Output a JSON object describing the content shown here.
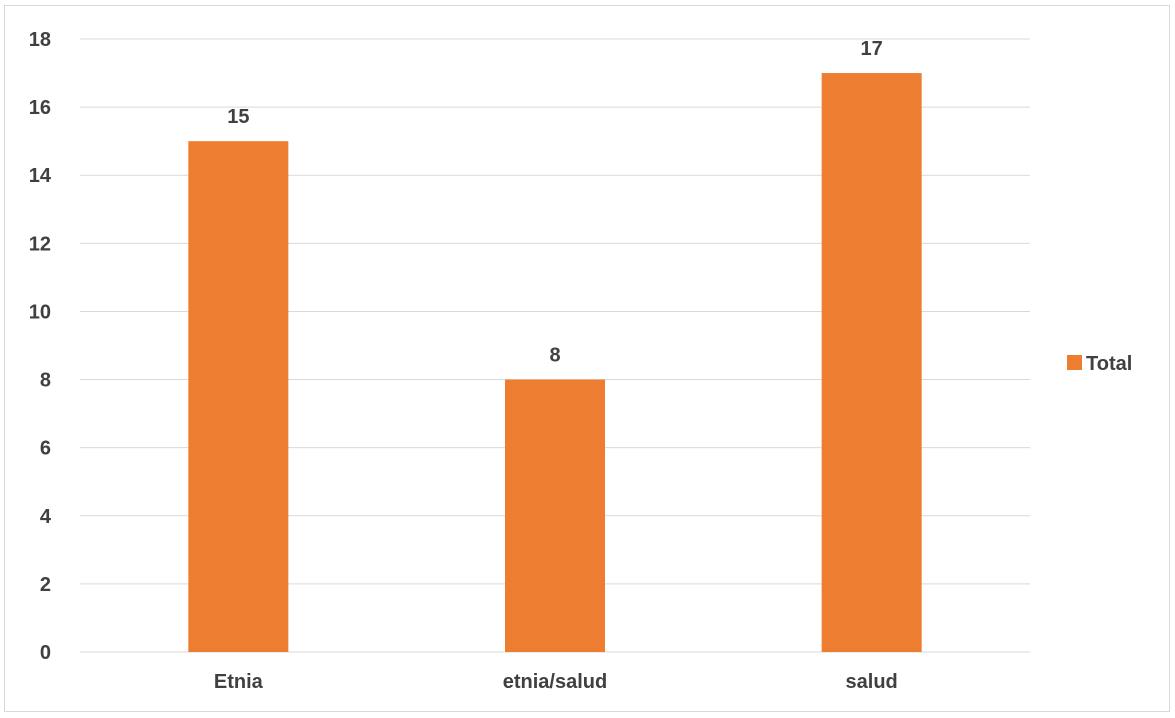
{
  "chart_data": {
    "type": "bar",
    "categories": [
      "Etnia",
      "etnia/salud",
      "salud"
    ],
    "series": [
      {
        "name": "Total",
        "values": [
          15,
          8,
          17
        ]
      }
    ],
    "data_labels": [
      "15",
      "8",
      "17"
    ],
    "title": "",
    "xlabel": "",
    "ylabel": "",
    "ylim": [
      0,
      18
    ],
    "y_ticks": [
      0,
      2,
      4,
      6,
      8,
      10,
      12,
      14,
      16,
      18
    ],
    "grid": true,
    "legend": {
      "position": "right",
      "label": "Total"
    },
    "colors": {
      "bar": "#ed7d31",
      "grid": "#d9d9d9",
      "text": "#404040",
      "data_label": "#404040"
    }
  }
}
